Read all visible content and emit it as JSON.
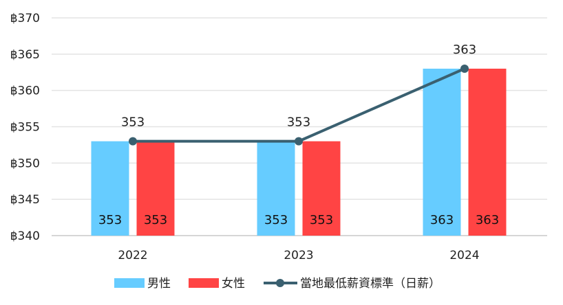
{
  "chart_data": {
    "type": "bar",
    "categories": [
      "2022",
      "2023",
      "2024"
    ],
    "y_tick_labels": [
      "฿340",
      "฿345",
      "฿350",
      "฿355",
      "฿360",
      "฿365",
      "฿370"
    ],
    "ylim": [
      340,
      370
    ],
    "grid": true,
    "legend_position": "bottom",
    "series": [
      {
        "name": "男性",
        "kind": "bar",
        "color": "#66ccff",
        "values": [
          353,
          353,
          363
        ]
      },
      {
        "name": "女性",
        "kind": "bar",
        "color": "#ff4444",
        "values": [
          353,
          353,
          363
        ]
      },
      {
        "name": "當地最低薪資標準（日薪）",
        "kind": "line",
        "color": "#3a6070",
        "values": [
          353,
          353,
          363
        ]
      }
    ]
  }
}
